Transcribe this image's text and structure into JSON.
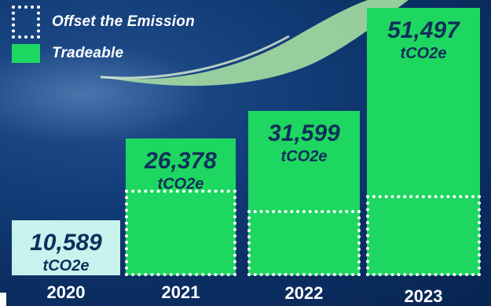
{
  "legend": {
    "offset_label": "Offset the Emission",
    "tradeable_label": "Tradeable"
  },
  "colors": {
    "tradeable": "#1ed760",
    "bar_2020": "#c9f1ee",
    "text_dark": "#0f2f5a",
    "background": "#123d78"
  },
  "chart_data": {
    "type": "bar",
    "categories": [
      "2020",
      "2021",
      "2022",
      "2023"
    ],
    "values": [
      10589,
      26378,
      31599,
      51497
    ],
    "value_labels": [
      "10,589",
      "26,378",
      "31,599",
      "51,497"
    ],
    "unit": "tCO2e",
    "offset_portion_estimated": [
      10589,
      16500,
      12500,
      15500
    ],
    "title": "",
    "xlabel": "",
    "ylabel": "",
    "ylim": [
      0,
      52000
    ],
    "legend_position": "top-left"
  }
}
